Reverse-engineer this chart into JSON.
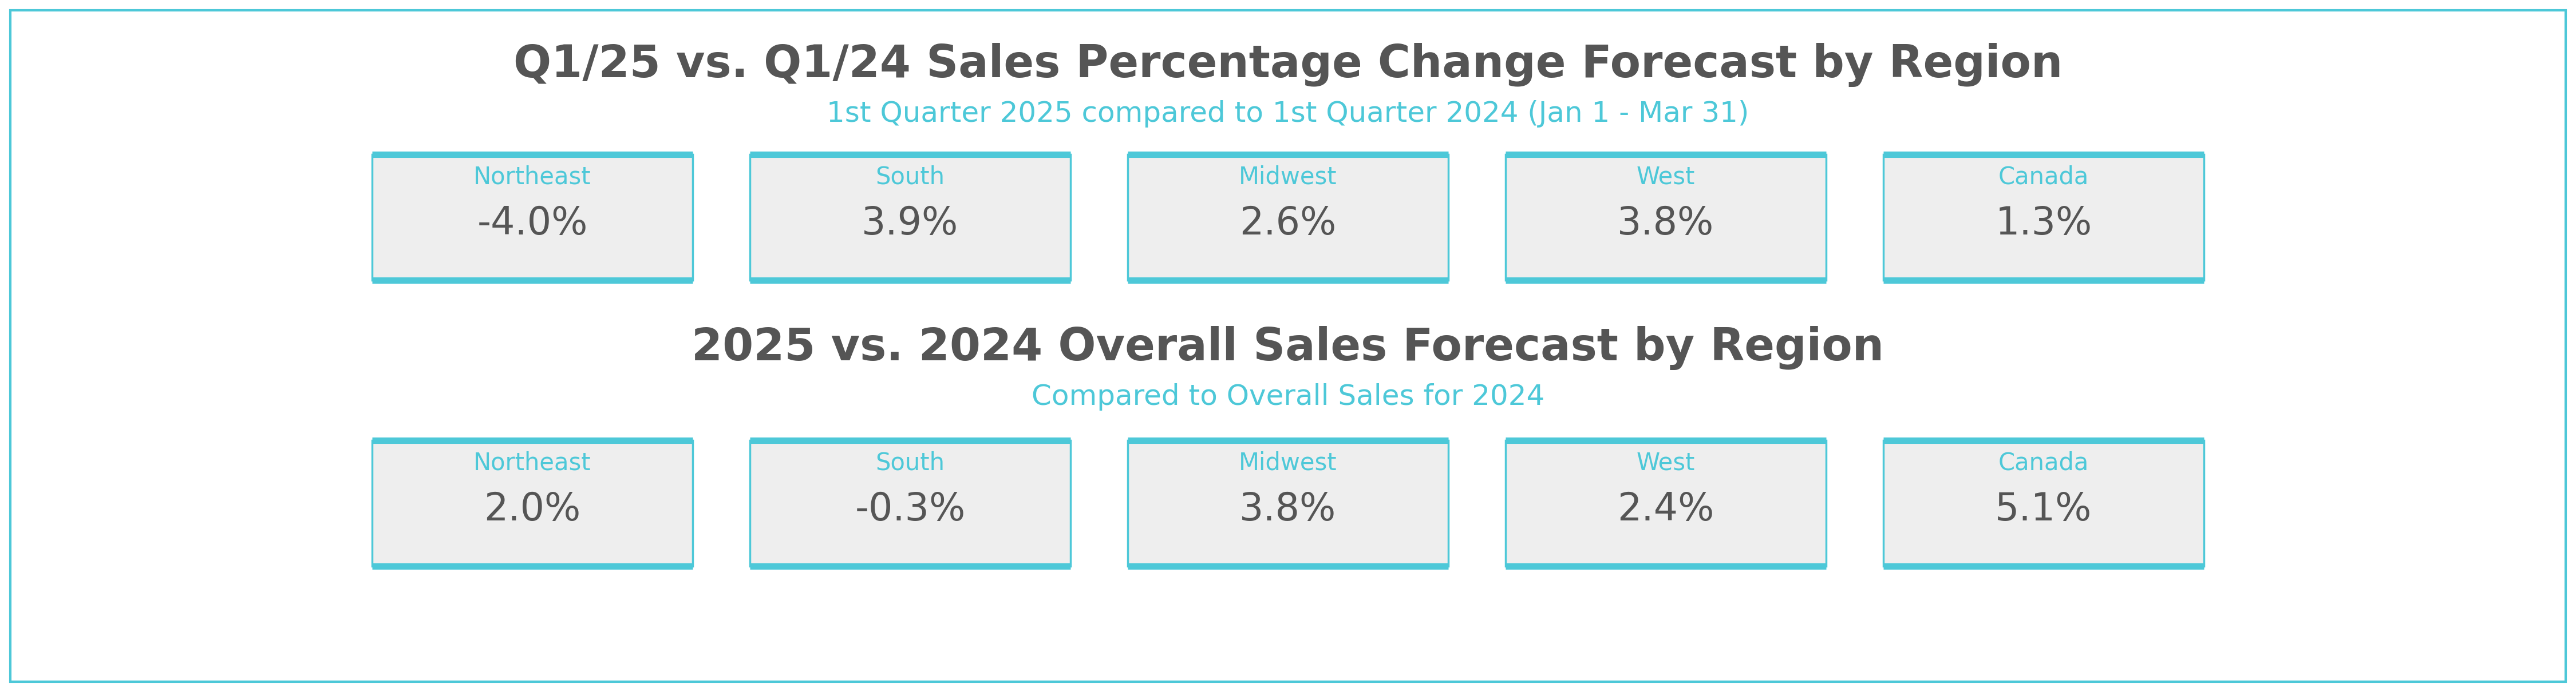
{
  "title1": "Q1/25 vs. Q1/24 Sales Percentage Change Forecast by Region",
  "subtitle1": "1st Quarter 2025 compared to 1st Quarter 2024 (Jan 1 - Mar 31)",
  "title2": "2025 vs. 2024 Overall Sales Forecast by Region",
  "subtitle2": "Compared to Overall Sales for 2024",
  "row1_regions": [
    "Northeast",
    "South",
    "Midwest",
    "West",
    "Canada"
  ],
  "row1_values": [
    "-4.0%",
    "3.9%",
    "2.6%",
    "3.8%",
    "1.3%"
  ],
  "row2_regions": [
    "Northeast",
    "South",
    "Midwest",
    "West",
    "Canada"
  ],
  "row2_values": [
    "2.0%",
    "-0.3%",
    "3.8%",
    "2.4%",
    "5.1%"
  ],
  "outer_border_color": "#4dc8d8",
  "box_border_color": "#4dc8d8",
  "box_fill_color": "#eeeeee",
  "title_color": "#555555",
  "subtitle_color": "#4dc8d8",
  "region_label_color": "#4dc8d8",
  "value_color": "#555555",
  "background_color": "#ffffff",
  "title1_fontsize": 56,
  "subtitle1_fontsize": 36,
  "title2_fontsize": 56,
  "subtitle2_fontsize": 36,
  "region_fontsize": 30,
  "value_fontsize": 48,
  "fig_width": 45.0,
  "fig_height": 12.1,
  "xlim": 4500,
  "ylim": 1210
}
